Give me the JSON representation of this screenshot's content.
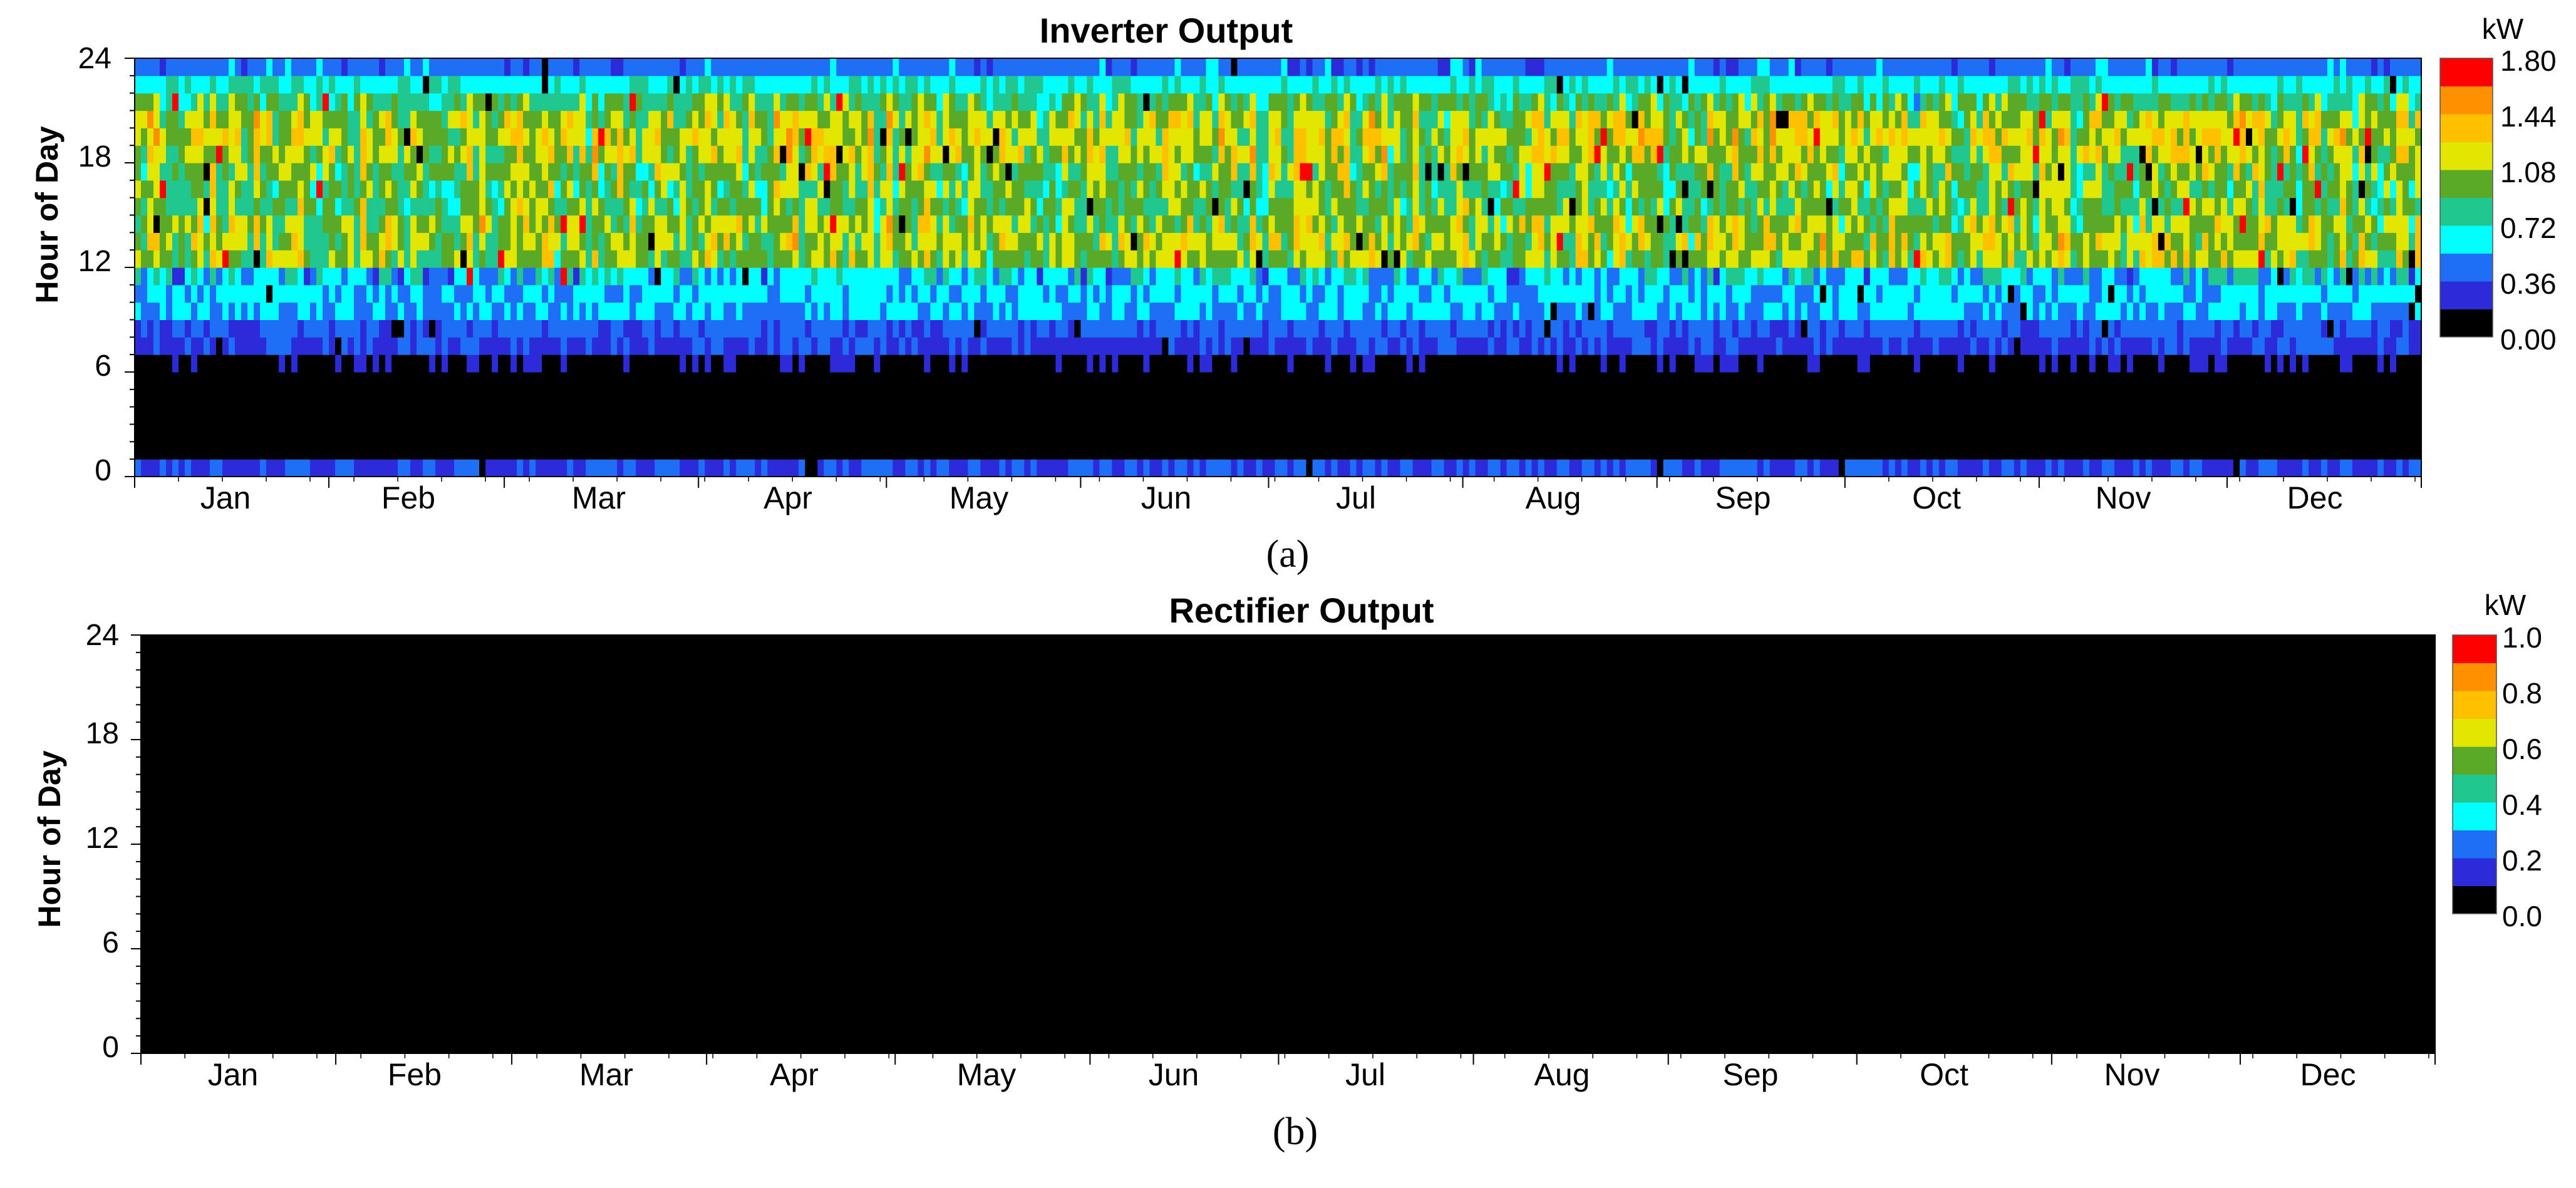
{
  "chart_data": [
    {
      "id": "inverter",
      "type": "heatmap",
      "title": "Inverter Output",
      "ylabel": "Hour of Day",
      "xlabel": "",
      "caption": "(a)",
      "x_categories": [
        "Jan",
        "Feb",
        "Mar",
        "Apr",
        "May",
        "Jun",
        "Jul",
        "Aug",
        "Sep",
        "Oct",
        "Nov",
        "Dec"
      ],
      "y_ticks": [
        "0",
        "6",
        "12",
        "18",
        "24"
      ],
      "ylim": [
        0,
        24
      ],
      "xlim_days": [
        1,
        365
      ],
      "colorbar": {
        "unit": "kW",
        "range": [
          0,
          1.8
        ],
        "tick_labels": [
          "0.00",
          "0.36",
          "0.72",
          "1.08",
          "1.44",
          "1.80"
        ]
      },
      "hourly_typical_kW": [
        0.2,
        0.0,
        0.0,
        0.0,
        0.0,
        0.0,
        0.0,
        0.15,
        0.25,
        0.4,
        0.45,
        0.45,
        0.95,
        1.0,
        0.95,
        0.85,
        0.85,
        0.9,
        1.0,
        1.05,
        1.0,
        0.8,
        0.55,
        0.3
      ],
      "max_kW": 1.8,
      "night_hours_zero": "1-6",
      "peak_hours": "12-21"
    },
    {
      "id": "rectifier",
      "type": "heatmap",
      "title": "Rectifier Output",
      "ylabel": "Hour of Day",
      "xlabel": "",
      "caption": "(b)",
      "x_categories": [
        "Jan",
        "Feb",
        "Mar",
        "Apr",
        "May",
        "Jun",
        "Jul",
        "Aug",
        "Sep",
        "Oct",
        "Nov",
        "Dec"
      ],
      "y_ticks": [
        "0",
        "6",
        "12",
        "18",
        "24"
      ],
      "ylim": [
        0,
        24
      ],
      "xlim_days": [
        1,
        365
      ],
      "colorbar": {
        "unit": "kW",
        "range": [
          0,
          1.0
        ],
        "tick_labels": [
          "0.0",
          "0.2",
          "0.4",
          "0.6",
          "0.8",
          "1.0"
        ]
      },
      "all_values_kW": 0.0
    }
  ],
  "colormap": [
    "#000000",
    "#2b2bd9",
    "#1e6ff5",
    "#00ffff",
    "#20c890",
    "#5aaa28",
    "#e2e600",
    "#ffc000",
    "#ff9000",
    "#ff0000"
  ]
}
